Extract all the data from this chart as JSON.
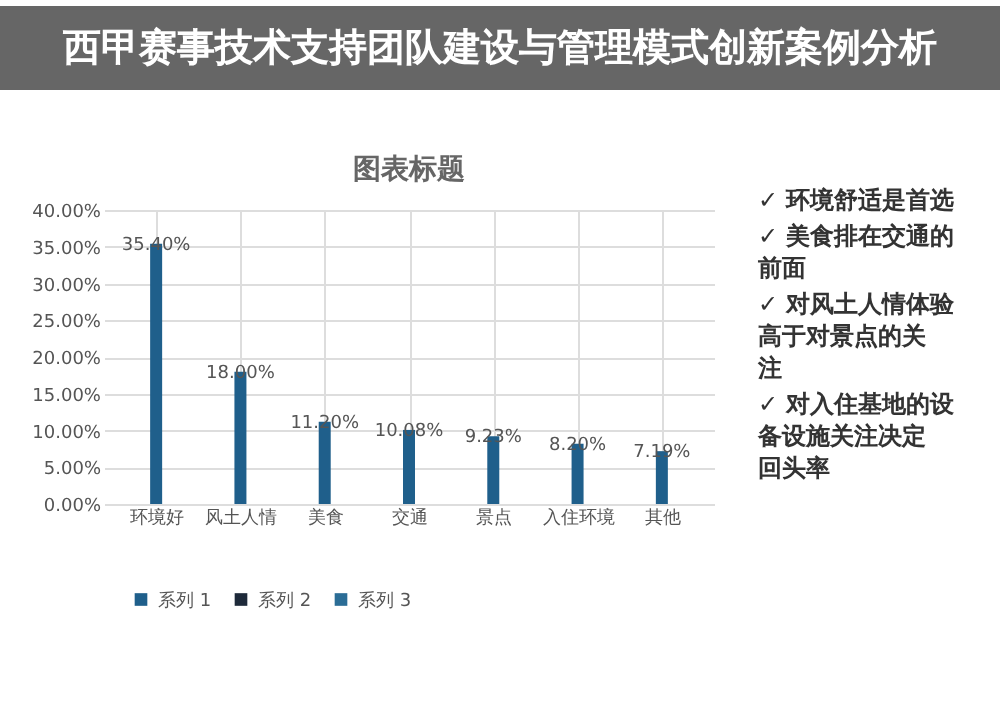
{
  "chart_data": {
    "type": "bar",
    "title": "图表标题",
    "subtitle": "西甲赛事技术支持团队建设与管理模式创新案例分析",
    "categories": [
      "环境好",
      "风土人情",
      "美食",
      "交通",
      "景点",
      "入住环境",
      "其他"
    ],
    "series": [
      {
        "name": "系列 1",
        "color": "#1f5f8b",
        "values": [
          35.4,
          18.0,
          11.2,
          10.08,
          9.23,
          8.2,
          7.19
        ],
        "value_labels": [
          "35.40%",
          "18.00%",
          "11.20%",
          "10.08%",
          "9.23%",
          "8.20%",
          "7.19%"
        ]
      },
      {
        "name": "系列 2",
        "color": "#1e2a3a",
        "values": [
          null,
          null,
          null,
          null,
          null,
          null,
          null
        ]
      },
      {
        "name": "系列 3",
        "color": "#2b6d96",
        "values": [
          null,
          null,
          null,
          null,
          null,
          null,
          null
        ]
      }
    ],
    "ylim": [
      0,
      40
    ],
    "yticks": [
      {
        "value": 0,
        "label": "0.00%"
      },
      {
        "value": 5,
        "label": "5.00%"
      },
      {
        "value": 10,
        "label": "10.00%"
      },
      {
        "value": 15,
        "label": "15.00%"
      },
      {
        "value": 20,
        "label": "20.00%"
      },
      {
        "value": 25,
        "label": "25.00%"
      },
      {
        "value": 30,
        "label": "30.00%"
      },
      {
        "value": 35,
        "label": "35.00%"
      },
      {
        "value": 40,
        "label": "40.00%"
      }
    ],
    "grid": true,
    "legend": "bottom",
    "annotations": [
      "✓ 环境舒适是首选",
      "✓ 美食排在交通的前面",
      "✓ 对风土人情体验高于对景点的关注",
      "✓ 对入住基地的设备设施关注决定回头率"
    ]
  }
}
